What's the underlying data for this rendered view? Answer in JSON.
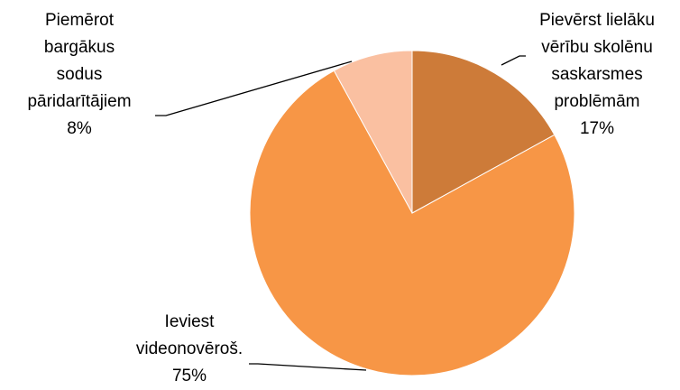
{
  "chart_data": {
    "type": "pie",
    "categories": [
      "Pievērst lielāku vērību skolēnu saskarsmes problēmām",
      "Ieviest videonovēroš.",
      "Piemērot bargākus sodus pāridarītājiem"
    ],
    "values": [
      17,
      75,
      8
    ],
    "value_labels": [
      "17%",
      "75%",
      "8%"
    ],
    "colors": [
      "#cd7b39",
      "#f79646",
      "#fac0a1"
    ]
  }
}
